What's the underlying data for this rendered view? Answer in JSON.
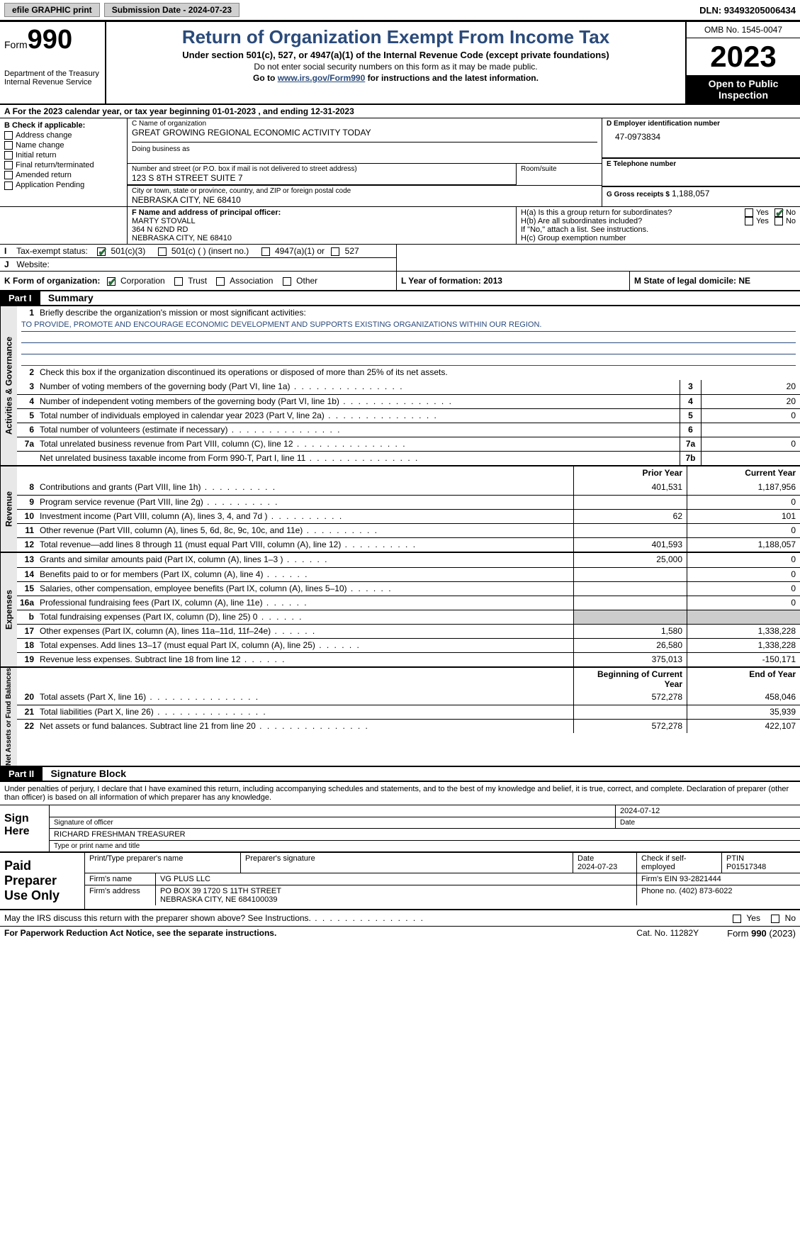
{
  "topbar": {
    "efile": "efile GRAPHIC print",
    "submission": "Submission Date - 2024-07-23",
    "dln": "DLN: 93493205006434"
  },
  "header": {
    "form_label": "Form",
    "form_no": "990",
    "dept": "Department of the Treasury Internal Revenue Service",
    "title": "Return of Organization Exempt From Income Tax",
    "sub1": "Under section 501(c), 527, or 4947(a)(1) of the Internal Revenue Code (except private foundations)",
    "sub2": "Do not enter social security numbers on this form as it may be made public.",
    "sub3_pre": "Go to ",
    "sub3_link": "www.irs.gov/Form990",
    "sub3_post": " for instructions and the latest information.",
    "omb": "OMB No. 1545-0047",
    "year": "2023",
    "open": "Open to Public Inspection"
  },
  "rowA": "For the 2023 calendar year, or tax year beginning 01-01-2023   , and ending 12-31-2023",
  "colB": {
    "hdr": "B Check if applicable:",
    "items": [
      "Address change",
      "Name change",
      "Initial return",
      "Final return/terminated",
      "Amended return",
      "Application Pending"
    ]
  },
  "colC": {
    "name_lbl": "C Name of organization",
    "name": "GREAT GROWING REGIONAL ECONOMIC ACTIVITY TODAY",
    "dba_lbl": "Doing business as",
    "addr_lbl": "Number and street (or P.O. box if mail is not delivered to street address)",
    "addr": "123 S 8TH STREET SUITE 7",
    "room_lbl": "Room/suite",
    "city_lbl": "City or town, state or province, country, and ZIP or foreign postal code",
    "city": "NEBRASKA CITY, NE  68410",
    "F_lbl": "F  Name and address of principal officer:",
    "F_name": "MARTY STOVALL",
    "F_addr1": "364 N 62ND RD",
    "F_addr2": "NEBRASKA CITY, NE  68410"
  },
  "colD": {
    "ein_lbl": "D Employer identification number",
    "ein": "47-0973834",
    "tel_lbl": "E Telephone number",
    "g_lbl": "G Gross receipts $",
    "g_val": "1,188,057",
    "Ha": "H(a)  Is this a group return for subordinates?",
    "Hb": "H(b)  Are all subordinates included?",
    "Hb2": "If \"No,\" attach a list. See instructions.",
    "Hc": "H(c)  Group exemption number",
    "yes": "Yes",
    "no": "No"
  },
  "rowI": {
    "lbl": "I",
    "text": "Tax-exempt status:",
    "o1": "501(c)(3)",
    "o2": "501(c) (  ) (insert no.)",
    "o3": "4947(a)(1) or",
    "o4": "527"
  },
  "rowJ": {
    "lbl": "J",
    "text": "Website:"
  },
  "rowK": {
    "k_lbl": "K Form of organization:",
    "opts": [
      "Corporation",
      "Trust",
      "Association",
      "Other"
    ],
    "L": "L Year of formation: 2013",
    "M": "M State of legal domicile: NE"
  },
  "part1": {
    "hdr": "Part I",
    "title": "Summary"
  },
  "gov": {
    "tab": "Activities & Governance",
    "l1": "Briefly describe the organization's mission or most significant activities:",
    "mission": "TO PROVIDE, PROMOTE AND ENCOURAGE ECONOMIC DEVELOPMENT AND SUPPORTS EXISTING ORGANIZATIONS WITHIN OUR REGION.",
    "l2": "Check this box      if the organization discontinued its operations or disposed of more than 25% of its net assets.",
    "rows": [
      {
        "n": "3",
        "d": "Number of voting members of the governing body (Part VI, line 1a)",
        "b": "3",
        "v": "20"
      },
      {
        "n": "4",
        "d": "Number of independent voting members of the governing body (Part VI, line 1b)",
        "b": "4",
        "v": "20"
      },
      {
        "n": "5",
        "d": "Total number of individuals employed in calendar year 2023 (Part V, line 2a)",
        "b": "5",
        "v": "0"
      },
      {
        "n": "6",
        "d": "Total number of volunteers (estimate if necessary)",
        "b": "6",
        "v": ""
      },
      {
        "n": "7a",
        "d": "Total unrelated business revenue from Part VIII, column (C), line 12",
        "b": "7a",
        "v": "0"
      },
      {
        "n": "",
        "d": "Net unrelated business taxable income from Form 990-T, Part I, line 11",
        "b": "7b",
        "v": ""
      }
    ]
  },
  "rev": {
    "tab": "Revenue",
    "py": "Prior Year",
    "cy": "Current Year",
    "rows": [
      {
        "n": "8",
        "d": "Contributions and grants (Part VIII, line 1h)",
        "p": "401,531",
        "c": "1,187,956"
      },
      {
        "n": "9",
        "d": "Program service revenue (Part VIII, line 2g)",
        "p": "",
        "c": "0"
      },
      {
        "n": "10",
        "d": "Investment income (Part VIII, column (A), lines 3, 4, and 7d )",
        "p": "62",
        "c": "101"
      },
      {
        "n": "11",
        "d": "Other revenue (Part VIII, column (A), lines 5, 6d, 8c, 9c, 10c, and 11e)",
        "p": "",
        "c": "0"
      },
      {
        "n": "12",
        "d": "Total revenue—add lines 8 through 11 (must equal Part VIII, column (A), line 12)",
        "p": "401,593",
        "c": "1,188,057"
      }
    ]
  },
  "exp": {
    "tab": "Expenses",
    "rows": [
      {
        "n": "13",
        "d": "Grants and similar amounts paid (Part IX, column (A), lines 1–3 )",
        "p": "25,000",
        "c": "0"
      },
      {
        "n": "14",
        "d": "Benefits paid to or for members (Part IX, column (A), line 4)",
        "p": "",
        "c": "0"
      },
      {
        "n": "15",
        "d": "Salaries, other compensation, employee benefits (Part IX, column (A), lines 5–10)",
        "p": "",
        "c": "0"
      },
      {
        "n": "16a",
        "d": "Professional fundraising fees (Part IX, column (A), line 11e)",
        "p": "",
        "c": "0"
      },
      {
        "n": "b",
        "d": "Total fundraising expenses (Part IX, column (D), line 25) 0",
        "p": "shade",
        "c": "shade"
      },
      {
        "n": "17",
        "d": "Other expenses (Part IX, column (A), lines 11a–11d, 11f–24e)",
        "p": "1,580",
        "c": "1,338,228"
      },
      {
        "n": "18",
        "d": "Total expenses. Add lines 13–17 (must equal Part IX, column (A), line 25)",
        "p": "26,580",
        "c": "1,338,228"
      },
      {
        "n": "19",
        "d": "Revenue less expenses. Subtract line 18 from line 12",
        "p": "375,013",
        "c": "-150,171"
      }
    ]
  },
  "net": {
    "tab": "Net Assets or Fund Balances",
    "by": "Beginning of Current Year",
    "ey": "End of Year",
    "rows": [
      {
        "n": "20",
        "d": "Total assets (Part X, line 16)",
        "p": "572,278",
        "c": "458,046"
      },
      {
        "n": "21",
        "d": "Total liabilities (Part X, line 26)",
        "p": "",
        "c": "35,939"
      },
      {
        "n": "22",
        "d": "Net assets or fund balances. Subtract line 21 from line 20",
        "p": "572,278",
        "c": "422,107"
      }
    ]
  },
  "part2": {
    "hdr": "Part II",
    "title": "Signature Block"
  },
  "sig": {
    "decl": "Under penalties of perjury, I declare that I have examined this return, including accompanying schedules and statements, and to the best of my knowledge and belief, it is true, correct, and complete. Declaration of preparer (other than officer) is based on all information of which preparer has any knowledge.",
    "here": "Sign Here",
    "date": "2024-07-12",
    "sig_lbl": "Signature of officer",
    "date_lbl": "Date",
    "name": "RICHARD FRESHMAN  TREASURER",
    "name_lbl": "Type or print name and title"
  },
  "prep": {
    "hdr": "Paid Preparer Use Only",
    "c1": "Print/Type preparer's name",
    "c2": "Preparer's signature",
    "c3": "Date",
    "c3v": "2024-07-23",
    "c4": "Check       if self-employed",
    "c5": "PTIN",
    "c5v": "P01517348",
    "firm_lbl": "Firm's name",
    "firm": "VG PLUS LLC",
    "ein_lbl": "Firm's EIN",
    "ein": "93-2821444",
    "addr_lbl": "Firm's address",
    "addr1": "PO BOX 39 1720 S 11TH STREET",
    "addr2": "NEBRASKA CITY, NE  684100039",
    "phone_lbl": "Phone no.",
    "phone": "(402) 873-6022"
  },
  "footer": {
    "q": "May the IRS discuss this return with the preparer shown above? See Instructions.",
    "yes": "Yes",
    "no": "No",
    "pra": "For Paperwork Reduction Act Notice, see the separate instructions.",
    "cat": "Cat. No. 11282Y",
    "form": "Form 990 (2023)"
  },
  "colors": {
    "title": "#2a4a7a",
    "check": "#2a6a3a",
    "tab_bg": "#e8e8e8",
    "shade": "#cccccc"
  }
}
